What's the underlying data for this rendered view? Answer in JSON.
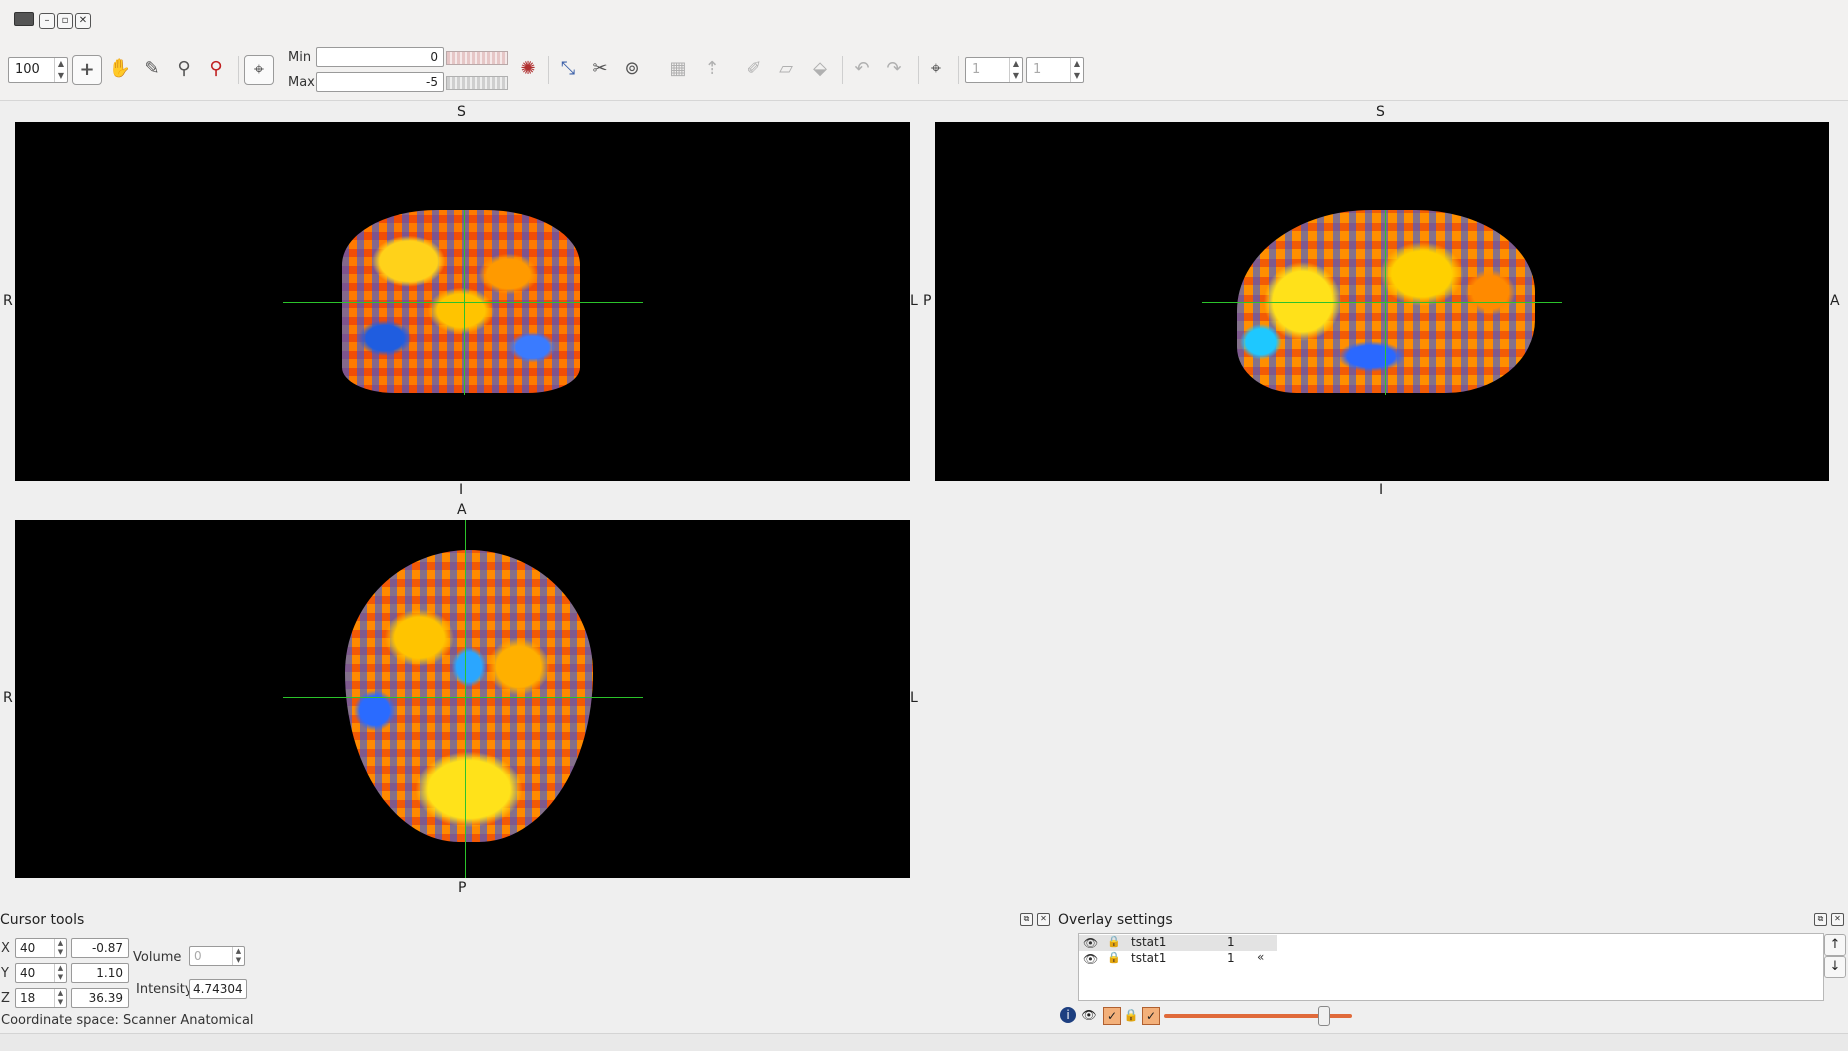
{
  "toolbar": {
    "zoom_value": "100",
    "min_label": "Min",
    "min_value": "0",
    "max_label": "Max",
    "max_value": "-5",
    "frame_a": "1",
    "frame_b": "1"
  },
  "views": {
    "coronal": {
      "top": "S",
      "bottom": "I",
      "left": "R",
      "right": "L"
    },
    "sagittal": {
      "top": "S",
      "bottom": "I",
      "left": "P",
      "right": "A"
    },
    "axial": {
      "top": "A",
      "bottom": "P",
      "left": "R",
      "right": "L"
    }
  },
  "cursor_tools": {
    "title": "Cursor tools",
    "x_label": "X",
    "x_voxel": "40",
    "x_world": "-0.87",
    "y_label": "Y",
    "y_voxel": "40",
    "y_world": "1.10",
    "z_label": "Z",
    "z_voxel": "18",
    "z_world": "36.39",
    "volume_label": "Volume",
    "volume_value": "0",
    "intensity_label": "Intensity",
    "intensity_value": "4.74304",
    "coordinate_space": "Coordinate space: Scanner Anatomical"
  },
  "overlay_settings": {
    "title": "Overlay settings",
    "items": [
      {
        "name": "tstat1",
        "value": "1"
      },
      {
        "name": "tstat1",
        "value": "1"
      }
    ],
    "opacity_percent": 85
  },
  "icons": {
    "crosshair": "crosshair-icon",
    "hand": "hand-icon",
    "pencil": "pencil-icon",
    "zoom": "magnifier-icon",
    "bricks": "bricks-icon",
    "eye": "eye-icon",
    "lock": "lock-icon"
  },
  "colors": {
    "crosshair": "#2bc32b",
    "opacity_slider": "#e06a3a",
    "viewer_bg": "#000000"
  }
}
